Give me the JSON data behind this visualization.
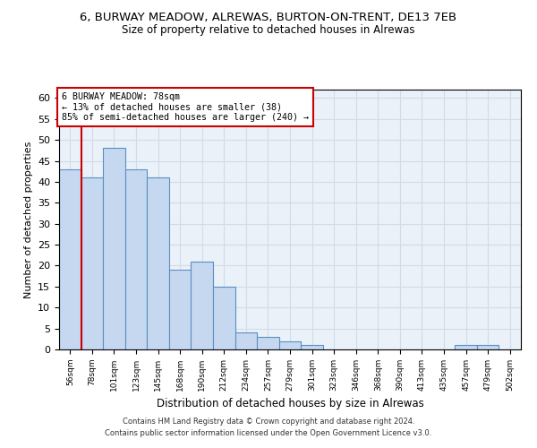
{
  "title_line1": "6, BURWAY MEADOW, ALREWAS, BURTON-ON-TRENT, DE13 7EB",
  "title_line2": "Size of property relative to detached houses in Alrewas",
  "xlabel": "Distribution of detached houses by size in Alrewas",
  "ylabel": "Number of detached properties",
  "categories": [
    "56sqm",
    "78sqm",
    "101sqm",
    "123sqm",
    "145sqm",
    "168sqm",
    "190sqm",
    "212sqm",
    "234sqm",
    "257sqm",
    "279sqm",
    "301sqm",
    "323sqm",
    "346sqm",
    "368sqm",
    "390sqm",
    "413sqm",
    "435sqm",
    "457sqm",
    "479sqm",
    "502sqm"
  ],
  "values": [
    43,
    41,
    48,
    43,
    41,
    19,
    21,
    15,
    4,
    3,
    2,
    1,
    0,
    0,
    0,
    0,
    0,
    0,
    1,
    1,
    0
  ],
  "bar_color": "#c5d8f0",
  "bar_edge_color": "#5a8fc3",
  "red_line_index": 1,
  "annotation_title": "6 BURWAY MEADOW: 78sqm",
  "annotation_line2": "← 13% of detached houses are smaller (38)",
  "annotation_line3": "85% of semi-detached houses are larger (240) →",
  "annotation_box_color": "#ffffff",
  "annotation_edge_color": "#cc0000",
  "red_line_color": "#cc0000",
  "ylim": [
    0,
    62
  ],
  "yticks": [
    0,
    5,
    10,
    15,
    20,
    25,
    30,
    35,
    40,
    45,
    50,
    55,
    60
  ],
  "footer_line1": "Contains HM Land Registry data © Crown copyright and database right 2024.",
  "footer_line2": "Contains public sector information licensed under the Open Government Licence v3.0.",
  "grid_color": "#d0dce8",
  "bg_color": "#eaf1f8"
}
